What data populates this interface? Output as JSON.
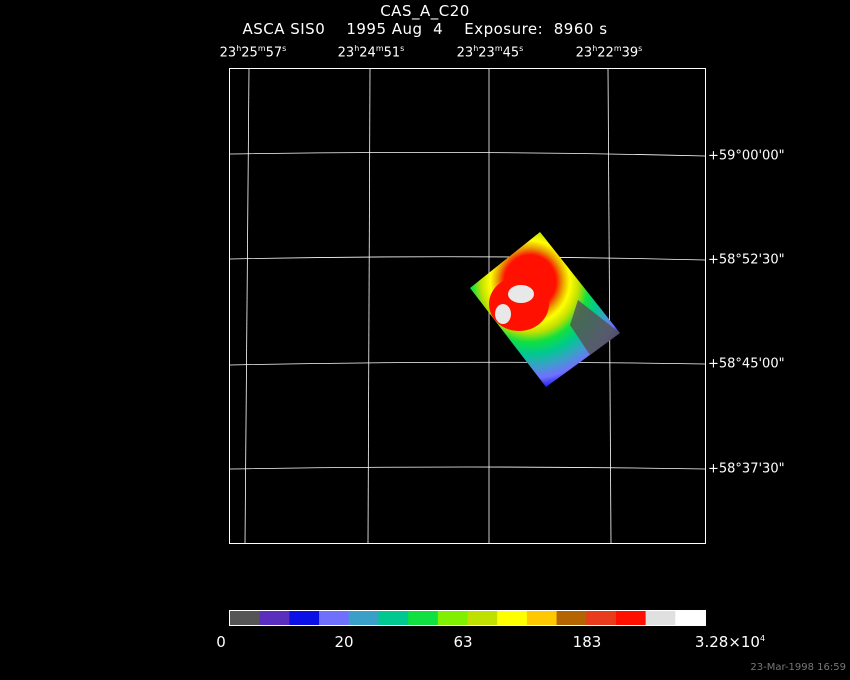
{
  "header": {
    "object": "CAS_A_C20",
    "instrument": "ASCA SIS0",
    "date": "1995 Aug  4",
    "exposure_label": "Exposure:",
    "exposure_value": "8960 s"
  },
  "ra_labels": [
    {
      "h": "23",
      "m": "25",
      "s": "57"
    },
    {
      "h": "23",
      "m": "24",
      "s": "51"
    },
    {
      "h": "23",
      "m": "23",
      "s": "45"
    },
    {
      "h": "23",
      "m": "22",
      "s": "39"
    }
  ],
  "dec_labels": [
    "+59°00'00\"",
    "+58°52'30\"",
    "+58°45'00\"",
    "+58°37'30\""
  ],
  "colorbar": {
    "colors": [
      "#555555",
      "#5b2fbd",
      "#0b10e6",
      "#7070ff",
      "#3aa0c8",
      "#00c890",
      "#10e040",
      "#80f000",
      "#c0e000",
      "#ffff00",
      "#ffc800",
      "#b46400",
      "#e83c1c",
      "#ff1000",
      "#e0e0e0",
      "#ffffff"
    ],
    "labels": [
      "0",
      "20",
      "63",
      "183"
    ],
    "max_label": {
      "mantissa": "3.28×10",
      "exponent": "4"
    }
  },
  "timestamp": "23-Mar-1998 16:59"
}
